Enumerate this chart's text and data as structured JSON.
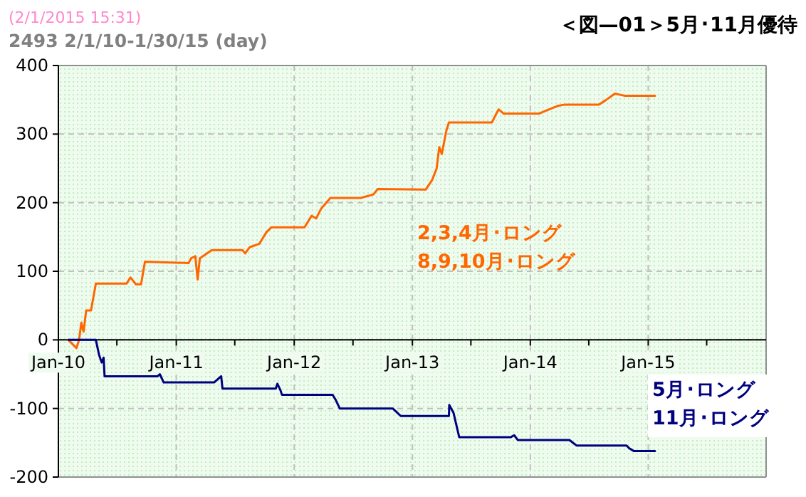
{
  "chart_data": {
    "type": "line",
    "title": "2493 2/1/10-1/30/15 (day)",
    "annotations": [
      "(2/1/2015 15:31)",
      "＜図—01＞5月･11月優待"
    ],
    "xlim": [
      "2010-01-01",
      "2016-01-01"
    ],
    "xticks": [
      {
        "value": "2010-01-01",
        "label": "Jan-10"
      },
      {
        "value": "2010-07-01",
        "label": null
      },
      {
        "value": "2011-01-01",
        "label": "Jan-11"
      },
      {
        "value": "2011-07-01",
        "label": null
      },
      {
        "value": "2012-01-01",
        "label": "Jan-12"
      },
      {
        "value": "2012-07-01",
        "label": null
      },
      {
        "value": "2013-01-01",
        "label": "Jan-13"
      },
      {
        "value": "2013-07-01",
        "label": null
      },
      {
        "value": "2014-01-01",
        "label": "Jan-14"
      },
      {
        "value": "2014-07-01",
        "label": null
      },
      {
        "value": "2015-01-01",
        "label": "Jan-15"
      },
      {
        "value": "2015-07-01",
        "label": null
      }
    ],
    "ylim": [
      -200,
      400
    ],
    "yticks": [
      -200,
      -100,
      0,
      100,
      200,
      300,
      400
    ],
    "grid": true,
    "series": [
      {
        "name": "2,3,4月･ロング\n8,9,10月･ロング",
        "color": "#ff6600",
        "x": [
          "2010-02-01",
          "2010-02-26",
          "2010-03-06",
          "2010-03-13",
          "2010-03-20",
          "2010-03-28",
          "2010-04-12",
          "2010-04-27",
          "2010-07-31",
          "2010-08-12",
          "2010-08-29",
          "2010-09-14",
          "2010-09-26",
          "2011-02-08",
          "2011-02-16",
          "2011-03-01",
          "2011-03-08",
          "2011-03-15",
          "2011-04-21",
          "2011-07-25",
          "2011-08-02",
          "2011-08-16",
          "2011-09-15",
          "2011-10-07",
          "2011-10-22",
          "2012-02-02",
          "2012-02-24",
          "2012-03-09",
          "2012-03-24",
          "2012-04-22",
          "2012-07-26",
          "2012-09-02",
          "2012-09-16",
          "2013-02-11",
          "2013-03-03",
          "2013-03-17",
          "2013-03-25",
          "2013-04-02",
          "2013-04-16",
          "2013-04-24",
          "2013-09-04",
          "2013-09-18",
          "2013-09-25",
          "2013-10-10",
          "2014-01-29",
          "2014-02-12",
          "2014-03-26",
          "2014-04-18",
          "2014-08-01",
          "2014-08-21",
          "2014-09-20",
          "2014-10-19",
          "2015-01-22"
        ],
        "values": [
          0,
          -12,
          0,
          25,
          12,
          43,
          43,
          82,
          82,
          91,
          81,
          81,
          114,
          112,
          119,
          122,
          88,
          119,
          131,
          131,
          126,
          135,
          140,
          157,
          164,
          164,
          181,
          177,
          191,
          207,
          207,
          212,
          220,
          219,
          233,
          250,
          281,
          271,
          305,
          317,
          317,
          330,
          336,
          330,
          330,
          333,
          341,
          343,
          343,
          349,
          359,
          356,
          356
        ]
      },
      {
        "name": "5月･ロング\n11月･ロング",
        "color": "#000080",
        "x": [
          "2010-02-01",
          "2010-04-27",
          "2010-05-07",
          "2010-05-15",
          "2010-05-21",
          "2010-05-24",
          "2010-11-04",
          "2010-11-11",
          "2010-11-23",
          "2011-04-28",
          "2011-05-20",
          "2011-05-24",
          "2011-11-05",
          "2011-11-10",
          "2011-11-20",
          "2011-11-24",
          "2012-04-29",
          "2012-05-09",
          "2012-05-21",
          "2012-11-01",
          "2012-11-26",
          "2013-04-24",
          "2013-04-25",
          "2013-05-08",
          "2013-05-26",
          "2013-11-01",
          "2013-11-12",
          "2013-11-23",
          "2014-05-02",
          "2014-05-24",
          "2014-10-26",
          "2014-11-03",
          "2014-11-17",
          "2015-01-22"
        ],
        "values": [
          0,
          0,
          -22,
          -33,
          -26,
          -53,
          -53,
          -50,
          -62,
          -62,
          -53,
          -71,
          -71,
          -64,
          -74,
          -80,
          -80,
          -88,
          -100,
          -100,
          -111,
          -111,
          -95,
          -106,
          -142,
          -142,
          -139,
          -146,
          -146,
          -154,
          -154,
          -158,
          -162,
          -162
        ]
      }
    ]
  }
}
